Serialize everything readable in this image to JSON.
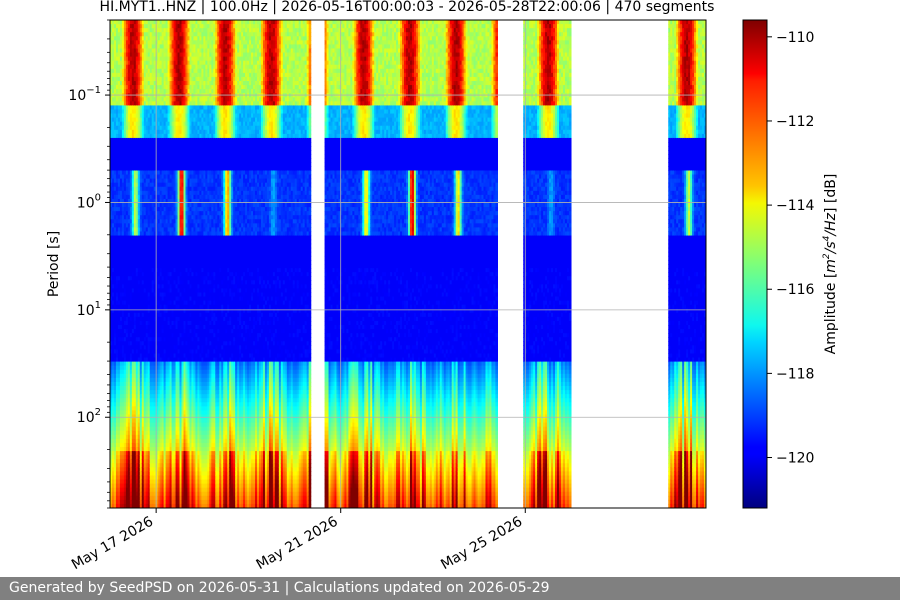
{
  "chart_data": {
    "type": "heatmap",
    "title": "HI.MYT1..HNZ | 100.0Hz | 2026-05-16T00:00:03 - 2026-05-28T22:00:06 | 470 segments",
    "ylabel": "Period [s]",
    "colorbar_label": "Amplitude [m²/s⁴/Hz] [dB]",
    "colorbar_label_parts": {
      "pre": "Amplitude [",
      "m": "m",
      "exp2": "2",
      "slash_s": "/s",
      "exp4": "4",
      "hz": "/Hz",
      "post": "] [dB]"
    },
    "y_scale": "log",
    "y_inverted": true,
    "ylim_period_s": [
      0.02,
      700
    ],
    "y_ticks": [
      {
        "value": 0.1,
        "base": "10",
        "exp": "−1"
      },
      {
        "value": 1,
        "base": "10",
        "exp": "0"
      },
      {
        "value": 10,
        "base": "10",
        "exp": "1"
      },
      {
        "value": 100,
        "base": "10",
        "exp": "2"
      }
    ],
    "x_start": "2026-05-16T00:00:03",
    "x_end": "2026-05-28T22:00:06",
    "x_ticks": [
      "May 17 2026",
      "May 21 2026",
      "May 25 2026"
    ],
    "x_tick_dates": [
      "2026-05-17",
      "2026-05-21",
      "2026-05-25"
    ],
    "data_gaps": [
      {
        "start": "2026-05-20T08:00",
        "end": "2026-05-20T16:00"
      },
      {
        "start": "2026-05-24T10:00",
        "end": "2026-05-24T23:00"
      },
      {
        "start": "2026-05-26T00:00",
        "end": "2026-05-28T02:00"
      }
    ],
    "colorbar": {
      "min": -121.2,
      "max": -109.6,
      "ticks": [
        -110,
        -112,
        -114,
        -116,
        -118,
        -120
      ],
      "tick_labels": [
        "−110",
        "−112",
        "−114",
        "−116",
        "−118",
        "−120"
      ],
      "colormap": "jet"
    },
    "grid": true
  },
  "footer": {
    "text": "Generated by SeedPSD on 2026-05-31 | Calculations updated on 2026-05-29"
  }
}
